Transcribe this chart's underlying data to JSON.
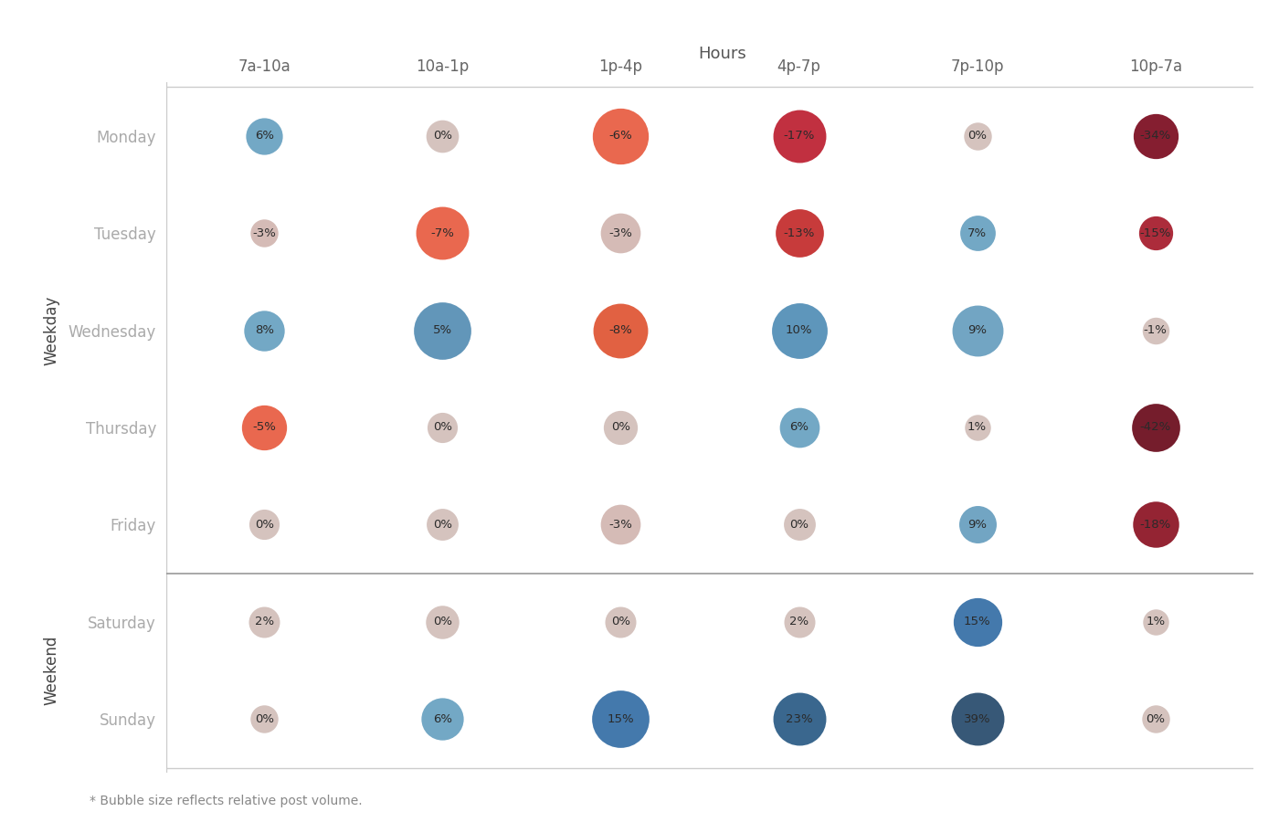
{
  "title": "Hours",
  "hours": [
    "7a-10a",
    "10a-1p",
    "1p-4p",
    "4p-7p",
    "7p-10p",
    "10p-7a"
  ],
  "days": [
    "Monday",
    "Tuesday",
    "Wednesday",
    "Thursday",
    "Friday",
    "Saturday",
    "Sunday"
  ],
  "weekday_label": "Weekday",
  "weekend_label": "Weekend",
  "footnote": "* Bubble size reflects relative post volume.",
  "values": [
    [
      6,
      0,
      -6,
      -17,
      0,
      -34
    ],
    [
      -3,
      -7,
      -3,
      -13,
      7,
      -15
    ],
    [
      8,
      5,
      -8,
      10,
      9,
      -1
    ],
    [
      -5,
      0,
      0,
      6,
      1,
      -42
    ],
    [
      0,
      0,
      -3,
      0,
      9,
      -18
    ],
    [
      2,
      0,
      0,
      2,
      15,
      1
    ],
    [
      0,
      6,
      15,
      23,
      39,
      0
    ]
  ],
  "sizes": [
    [
      280,
      220,
      650,
      580,
      160,
      420
    ],
    [
      160,
      580,
      330,
      480,
      260,
      240
    ],
    [
      340,
      680,
      620,
      640,
      540,
      150
    ],
    [
      420,
      190,
      240,
      330,
      140,
      480
    ],
    [
      190,
      210,
      330,
      210,
      290,
      440
    ],
    [
      200,
      230,
      200,
      200,
      490,
      140
    ],
    [
      160,
      370,
      680,
      580,
      580,
      160
    ]
  ],
  "bg_color": "#ffffff",
  "footnote_color": "#888888",
  "day_label_color": "#aaaaaa",
  "hour_label_color": "#666666",
  "section_label_color": "#444444",
  "title_color": "#555555",
  "divider_color": "#cccccc",
  "border_color": "#cccccc"
}
